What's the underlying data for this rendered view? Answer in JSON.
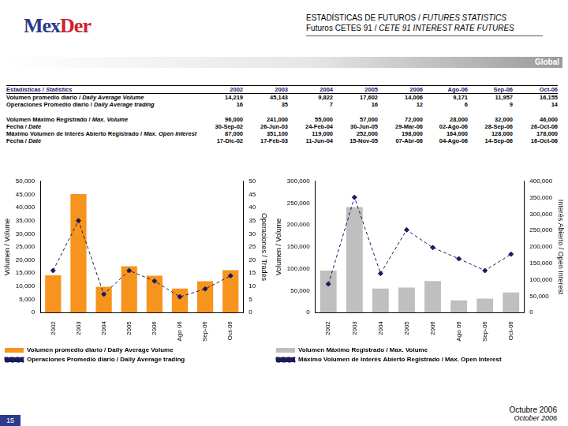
{
  "header": {
    "logo": "MexDer",
    "title": "ESTADÍSTICAS DE FUTUROS / FUTURES STATISTICS",
    "subtitle": "Futuros CETES 91 / CETE 91 INTEREST RATE FUTURES",
    "section": "Global"
  },
  "table": {
    "header": [
      "Estadísticas / Statistics",
      "2002",
      "2003",
      "2004",
      "2005",
      "2006",
      "Ago-06",
      "Sep-06",
      "Oct-06"
    ],
    "rows": [
      [
        "Volumen promedio diario / Daily Average Volume",
        "14,219",
        "45,143",
        "9,822",
        "17,602",
        "14,006",
        "9,171",
        "11,957",
        "16,155"
      ],
      [
        "Operaciones Promedio diario / Daily Average trading",
        "16",
        "35",
        "7",
        "16",
        "12",
        "6",
        "9",
        "14"
      ],
      [
        "Volumen Máximo Registrado / Max. Volume",
        "96,000",
        "241,000",
        "55,000",
        "57,000",
        "72,000",
        "28,000",
        "32,000",
        "46,000"
      ],
      [
        "Fecha / Date",
        "30-Sep-02",
        "26-Jun-03",
        "24-Feb-04",
        "30-Jun-05",
        "29-Mar-06",
        "02-Ago-06",
        "28-Sep-06",
        "26-Oct-06"
      ],
      [
        "Máximo Volumen de Interés Abierto Registrado / Max. Open Interest",
        "87,000",
        "351,100",
        "119,000",
        "252,000",
        "198,000",
        "164,000",
        "128,000",
        "178,000"
      ],
      [
        "Fecha / Date",
        "17-Dic-02",
        "17-Feb-03",
        "11-Jun-04",
        "15-Nov-05",
        "07-Abr-06",
        "04-Ago-06",
        "14-Sep-06",
        "16-Oct-06"
      ]
    ]
  },
  "chart_data": [
    {
      "type": "bar",
      "categories": [
        "2002",
        "2003",
        "2004",
        "2005",
        "2006",
        "Ago 06",
        "Sep-06",
        "Oct-06"
      ],
      "ylabel": "Volumen / Volume",
      "y2label": "Operaciones / Trades",
      "ylim": [
        0,
        50000
      ],
      "yticks": [
        0,
        {
          "value": 5000,
          "label": "5,000"
        },
        {
          "value": 10000,
          "label": "10,000"
        },
        {
          "value": 15000,
          "label": "15,000"
        },
        {
          "value": 20000,
          "label": "20,000"
        },
        {
          "value": 25000,
          "label": "25,000"
        },
        {
          "value": 30000,
          "label": "30,000"
        },
        {
          "value": 35000,
          "label": "35,000"
        },
        {
          "value": 40000,
          "label": "40,000"
        },
        {
          "value": 45000,
          "label": "45,000"
        },
        {
          "value": 50000,
          "label": "50,000"
        }
      ],
      "y2lim": [
        0,
        50
      ],
      "y2ticks": [
        0,
        5,
        10,
        15,
        20,
        25,
        30,
        35,
        40,
        45,
        50
      ],
      "grid": false,
      "legend": "bottom",
      "series": [
        {
          "name": "Volumen promedio diario / Daily Average Volume",
          "type": "bar",
          "color": "#f7941d",
          "values": [
            14219,
            45143,
            9822,
            17602,
            14006,
            9171,
            11957,
            16155
          ]
        },
        {
          "name": "Operaciones Promedio diario / Daily Average trading",
          "type": "line",
          "axis": "y2",
          "color": "#1a1a5e",
          "marker": "diamond",
          "line_style": "dashed",
          "values": [
            16,
            35,
            7,
            16,
            12,
            6,
            9,
            14
          ]
        }
      ]
    },
    {
      "type": "bar",
      "categories": [
        "2002",
        "2003",
        "2004",
        "2005",
        "2006",
        "Ago 06",
        "Sep-06",
        "Oct-06"
      ],
      "ylabel": "Volumen / Volume",
      "y2label": "Interés Abierto / Open Interest",
      "ylim": [
        0,
        300000
      ],
      "yticks": [
        0,
        {
          "value": 50000,
          "label": "50,000"
        },
        {
          "value": 100000,
          "label": "100,000"
        },
        {
          "value": 150000,
          "label": "150,000"
        },
        {
          "value": 200000,
          "label": "200,000"
        },
        {
          "value": 250000,
          "label": "250,000"
        },
        {
          "value": 300000,
          "label": "300,000"
        }
      ],
      "y2lim": [
        0,
        400000
      ],
      "y2ticks": [
        0,
        {
          "value": 50000,
          "label": "50,000"
        },
        {
          "value": 100000,
          "label": "100,000"
        },
        {
          "value": 150000,
          "label": "150,000"
        },
        {
          "value": 200000,
          "label": "200,000"
        },
        {
          "value": 250000,
          "label": "250,000"
        },
        {
          "value": 300000,
          "label": "300,000"
        },
        {
          "value": 350000,
          "label": "350,000"
        },
        {
          "value": 400000,
          "label": "400,000"
        }
      ],
      "grid": false,
      "legend": "bottom",
      "series": [
        {
          "name": "Volumen Máximo Registrado / Max. Volume",
          "type": "bar",
          "color": "#bfbfbf",
          "values": [
            96000,
            241000,
            55000,
            57000,
            72000,
            28000,
            32000,
            46000
          ]
        },
        {
          "name": "Máximo Volumen de Interés Abierto Registrado / Max. Open Interest",
          "type": "line",
          "axis": "y2",
          "color": "#1a1a5e",
          "marker": "diamond",
          "line_style": "dashed",
          "values": [
            87000,
            351100,
            119000,
            252000,
            198000,
            164000,
            128000,
            178000
          ]
        }
      ]
    }
  ],
  "footer": {
    "page": "15",
    "date": "Octubre 2006",
    "date_en": "October 2006"
  }
}
